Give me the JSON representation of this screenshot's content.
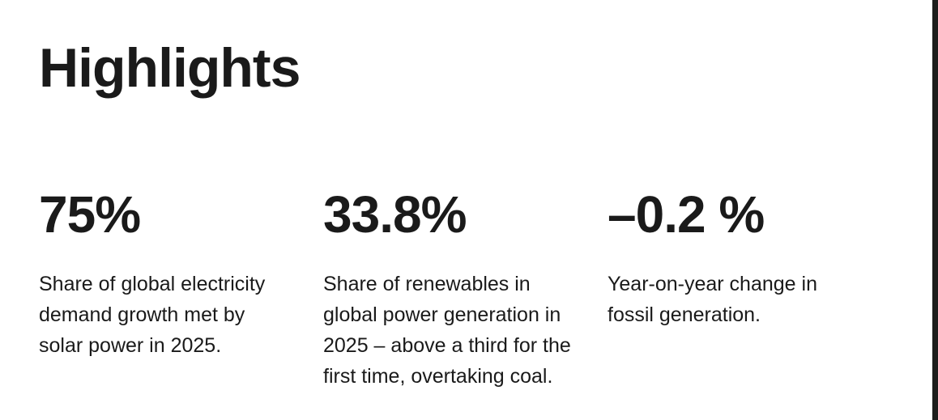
{
  "page": {
    "heading": "Highlights"
  },
  "colors": {
    "background": "#ffffff",
    "text": "#1a1a1a",
    "edge_bar": "#1d1d1b"
  },
  "stats": [
    {
      "value": "75%",
      "description": "Share of global electricity demand growth met by solar power in 2025."
    },
    {
      "value": "33.8%",
      "description": "Share of renewables in global power generation in 2025 – above a third for the first time, overtaking coal."
    },
    {
      "value": "–0.2 %",
      "description": "Year-on-year change in fossil generation."
    }
  ]
}
